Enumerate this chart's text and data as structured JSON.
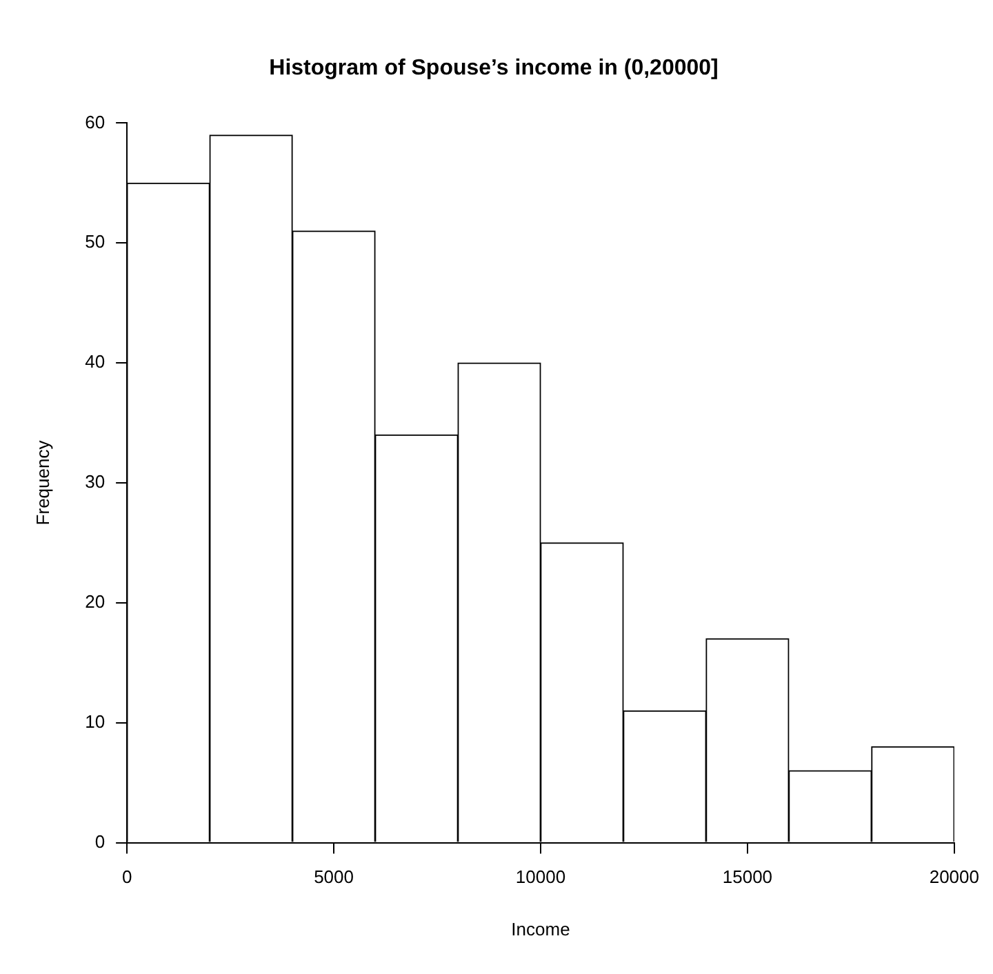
{
  "chart_data": {
    "type": "histogram",
    "title": "Histogram of Spouse’s income in (0,20000]",
    "xlabel": "Income",
    "ylabel": "Frequency",
    "bins": [
      0,
      2000,
      4000,
      6000,
      8000,
      10000,
      12000,
      14000,
      16000,
      18000,
      20000
    ],
    "values": [
      55,
      59,
      51,
      34,
      40,
      25,
      11,
      17,
      6,
      8
    ],
    "color": "#ffffff",
    "xlim": [
      0,
      20000
    ],
    "xticks": [
      0,
      5000,
      10000,
      15000,
      20000
    ],
    "ylim": [
      0,
      60
    ],
    "yticks": [
      0,
      10,
      20,
      30,
      40,
      50,
      60
    ],
    "grid": false,
    "legend": false
  }
}
